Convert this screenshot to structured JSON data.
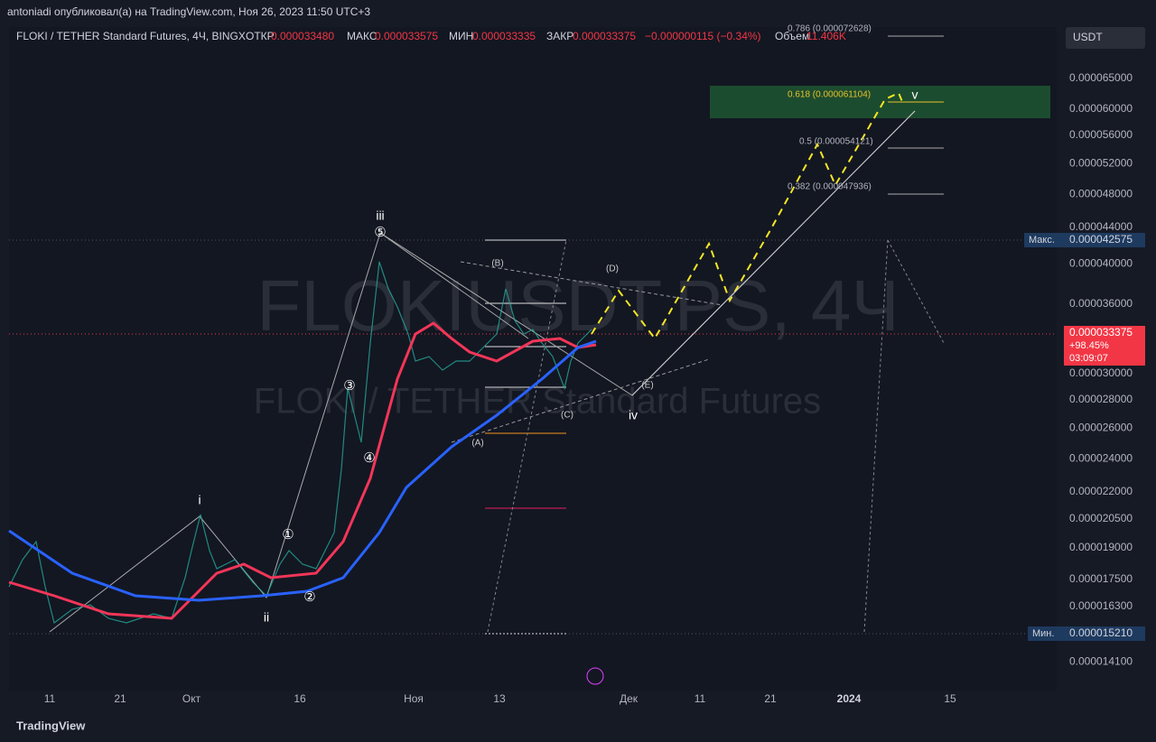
{
  "header": {
    "publisher": "antoniadi опубликовал(а) на TradingView.com, Ноя 26, 2023 11:50 UTC+3",
    "symbol": "FLOKI / TETHER Standard Futures, 4Ч, BINGX",
    "ohlc": [
      {
        "label": "ОТКР",
        "value": "0.000033480"
      },
      {
        "label": "МАКС",
        "value": "0.000033575"
      },
      {
        "label": "МИН",
        "value": "0.000033335"
      },
      {
        "label": "ЗАКР",
        "value": "0.000033375"
      }
    ],
    "change": "−0.000000115 (−0.34%)",
    "volume_label": "Объем",
    "volume": "11.406K"
  },
  "currency": "USDT",
  "price_axis": [
    "0.000065000",
    "0.000060000",
    "0.000056000",
    "0.000052000",
    "0.000048000",
    "0.000044000",
    "0.000040000",
    "0.000036000",
    "0.000030000",
    "0.000028000",
    "0.000026000",
    "0.000024000",
    "0.000022000",
    "0.000020500",
    "0.000019000",
    "0.000017500",
    "0.000016300",
    "0.000014100"
  ],
  "max_label": {
    "label": "Макс.",
    "value": "0.000042575"
  },
  "current": {
    "price": "0.000033375",
    "change": "+98.45%",
    "timer": "03:09:07"
  },
  "min_label": {
    "label": "Мин.",
    "value": "0.000015210"
  },
  "date_axis": [
    "11",
    "21",
    "Окт",
    "16",
    "Ноя",
    "13",
    "Дек",
    "11",
    "21",
    "2024",
    "15"
  ],
  "fib": [
    "0.786 (0.000072628)",
    "0.618 (0.000061104)",
    "0.5 (0.000054121)",
    "0.382 (0.000047936)"
  ],
  "waves": [
    "i",
    "ii",
    "iii",
    "iv",
    "v",
    "①",
    "②",
    "③",
    "④",
    "⑤",
    "(A)",
    "(B)",
    "(C)",
    "(D)",
    "(E)"
  ],
  "watermark": {
    "symbol": "FLOKIUSDT.PS, 4Ч",
    "name": "FLOKI / TETHER Standard Futures"
  },
  "footer": "TradingView"
}
